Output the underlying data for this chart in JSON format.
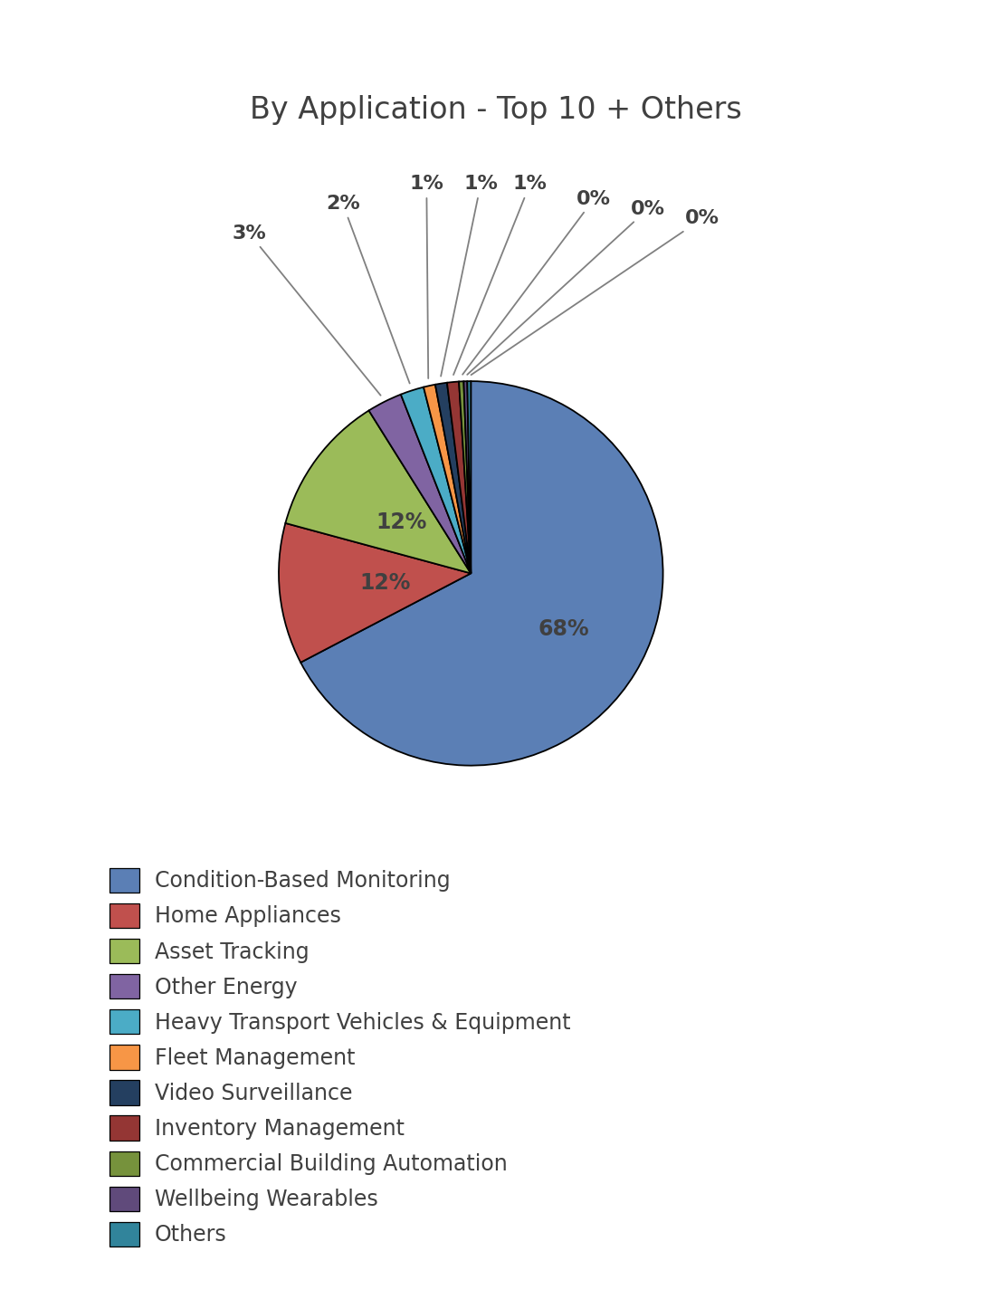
{
  "title": "By Application - Top 10 + Others",
  "labels": [
    "Condition-Based Monitoring",
    "Home Appliances",
    "Asset Tracking",
    "Other Energy",
    "Heavy Transport Vehicles & Equipment",
    "Fleet Management",
    "Video Surveillance",
    "Inventory Management",
    "Commercial Building Automation",
    "Wellbeing Wearables",
    "Others"
  ],
  "values": [
    68,
    12,
    12,
    3,
    2,
    1,
    1,
    1,
    0.4,
    0.3,
    0.3
  ],
  "colors": [
    "#5b7fb5",
    "#c0504d",
    "#9bbb59",
    "#8064a2",
    "#4bacc6",
    "#f79646",
    "#243f60",
    "#943634",
    "#76923c",
    "#604a7b",
    "#31849b"
  ],
  "pct_labels": [
    "68%",
    "12%",
    "12%",
    "3%",
    "2%",
    "1%",
    "1%",
    "1%",
    "0%",
    "0%",
    "0%"
  ],
  "title_fontsize": 24,
  "legend_fontsize": 17,
  "pct_fontsize": 16,
  "background_color": "#ffffff",
  "text_color": "#404040"
}
